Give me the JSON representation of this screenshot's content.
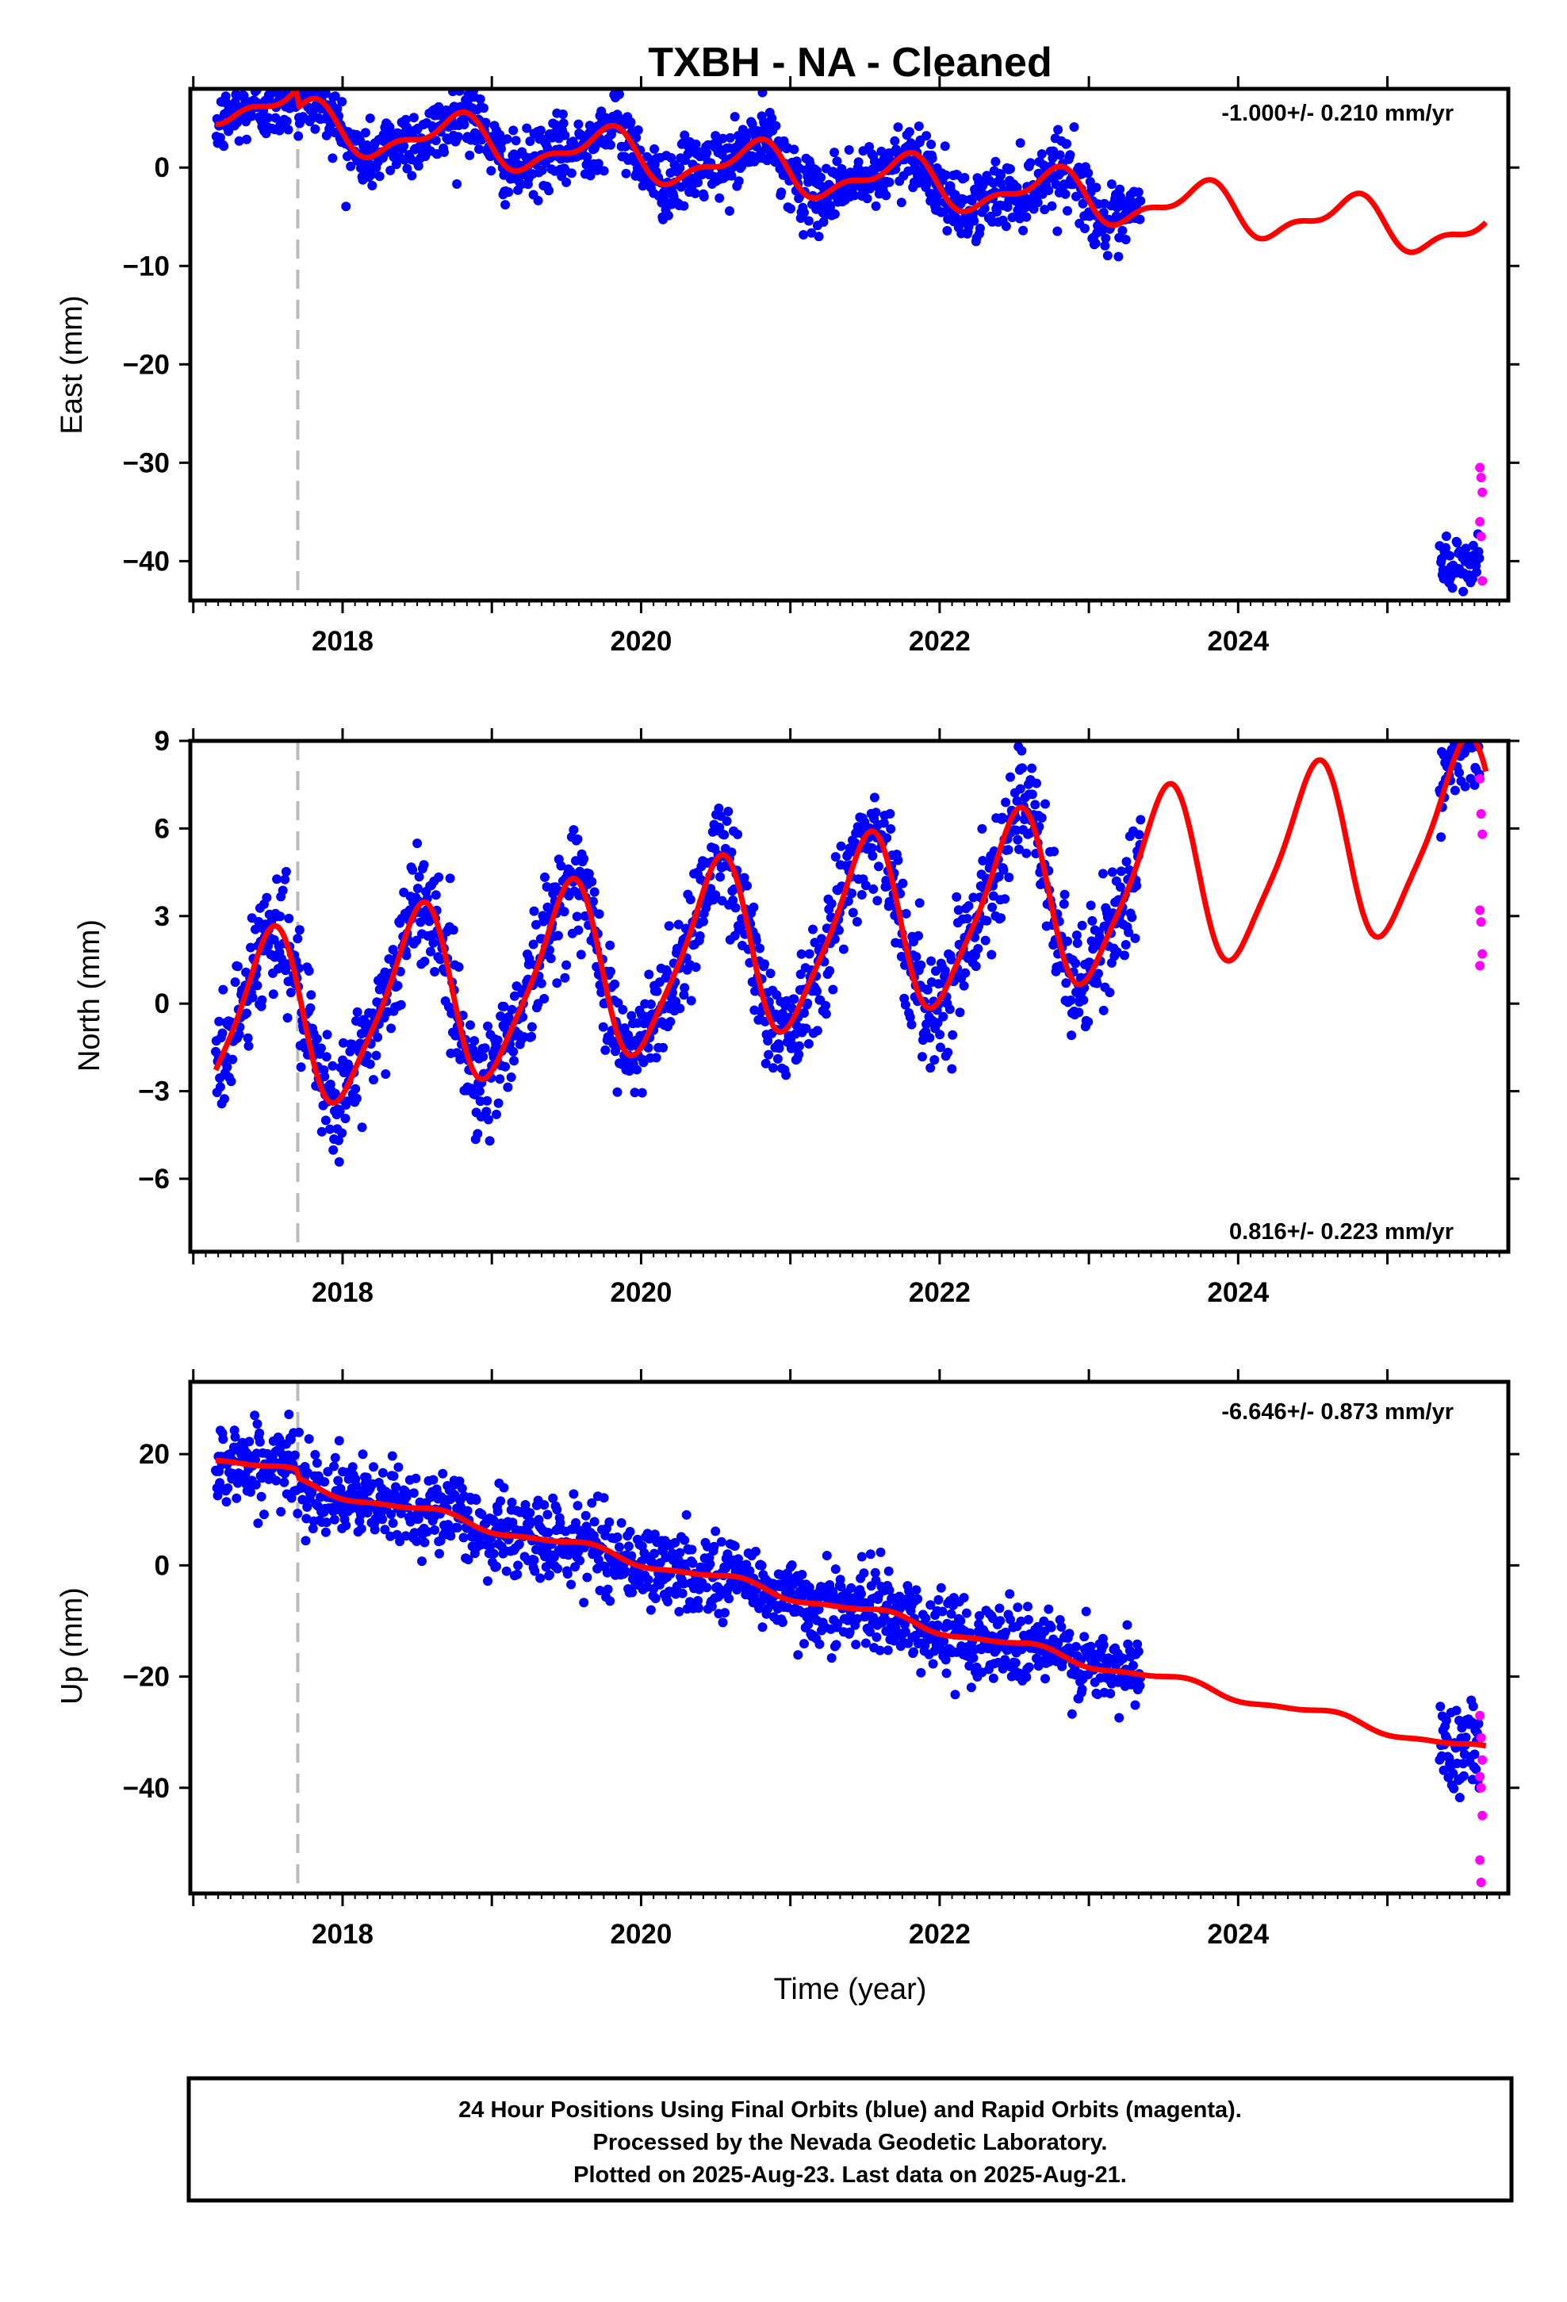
{
  "title": "TXBH  - NA - Cleaned",
  "xlabel": "Time (year)",
  "x_tick_labels": [
    "2018",
    "2020",
    "2022",
    "2024"
  ],
  "colors": {
    "final": "#0000ff",
    "rapid": "#ff00ff",
    "model": "#ff0000",
    "event": "#bbbbbb"
  },
  "footer": {
    "line1": "24 Hour Positions Using Final Orbits (blue) and Rapid Orbits (magenta).",
    "line2": "Processed by the Nevada Geodetic Laboratory.",
    "line3": "Plotted on 2025-Aug-23. Last data on 2025-Aug-21."
  },
  "chart_data": [
    {
      "type": "scatter",
      "component": "East",
      "ylabel": "East (mm)",
      "rate_label": "-1.000+/- 0.210 mm/yr",
      "rate_position": "top-right",
      "xlim": [
        2016.98,
        2025.81
      ],
      "ylim": [
        -44,
        8
      ],
      "yticks": [
        0,
        -10,
        -20,
        -30,
        -40
      ],
      "event_x": 2017.7,
      "final_data_range": [
        2017.15,
        2023.35
      ],
      "final_data_range_2": [
        2025.35,
        2025.62
      ],
      "rapid_data_range": [
        2025.62,
        2025.64
      ],
      "model": {
        "trend": [
          2017.15,
          5.0,
          2025.65,
          -6.7
        ],
        "step": 2.0,
        "annual_amplitude": 2.2,
        "semiannual_amplitude": 1.0,
        "phase_peak": 0.75
      },
      "final_points_late_mean": -40.5,
      "rapid_points": [
        -30.5,
        -31.5,
        -33,
        -36,
        -37.5,
        -42
      ]
    },
    {
      "type": "scatter",
      "component": "North",
      "ylabel": "North (mm)",
      "rate_label": "0.816+/- 0.223 mm/yr",
      "rate_position": "bottom-right",
      "xlim": [
        2016.98,
        2025.81
      ],
      "ylim": [
        -8.5,
        9
      ],
      "yticks": [
        9,
        6,
        3,
        0,
        -3,
        -6
      ],
      "event_x": 2017.7,
      "final_data_range": [
        2017.15,
        2023.35
      ],
      "final_data_range_2": [
        2025.35,
        2025.62
      ],
      "rapid_data_range": [
        2025.62,
        2025.64
      ],
      "model": {
        "trend": [
          2017.15,
          -1.0,
          2025.65,
          5.9
        ],
        "step": 0,
        "annual_amplitude": 3.0,
        "semiannual_amplitude": 0.6,
        "phase_peak": 0.5
      },
      "rapid_points": [
        7.7,
        6.5,
        5.8,
        3.2,
        2.8,
        1.7,
        1.3
      ]
    },
    {
      "type": "scatter",
      "component": "Up",
      "ylabel": "Up (mm)",
      "rate_label": "-6.646+/- 0.873 mm/yr",
      "rate_position": "top-right",
      "xlim": [
        2016.98,
        2025.81
      ],
      "ylim": [
        -59,
        33
      ],
      "yticks": [
        20,
        0,
        -20,
        -40
      ],
      "event_x": 2017.7,
      "final_data_range": [
        2017.15,
        2023.35
      ],
      "final_data_range_2": [
        2025.35,
        2025.62
      ],
      "rapid_data_range": [
        2025.62,
        2025.64
      ],
      "model": {
        "trend": [
          2017.15,
          18.0,
          2025.65,
          -33.5
        ],
        "step": 1.5,
        "annual_amplitude": 0.9,
        "semiannual_amplitude": 0.3,
        "phase_peak": 0.6
      },
      "rapid_points": [
        -27,
        -31,
        -35,
        -38,
        -40,
        -45,
        -53,
        -57
      ]
    }
  ]
}
